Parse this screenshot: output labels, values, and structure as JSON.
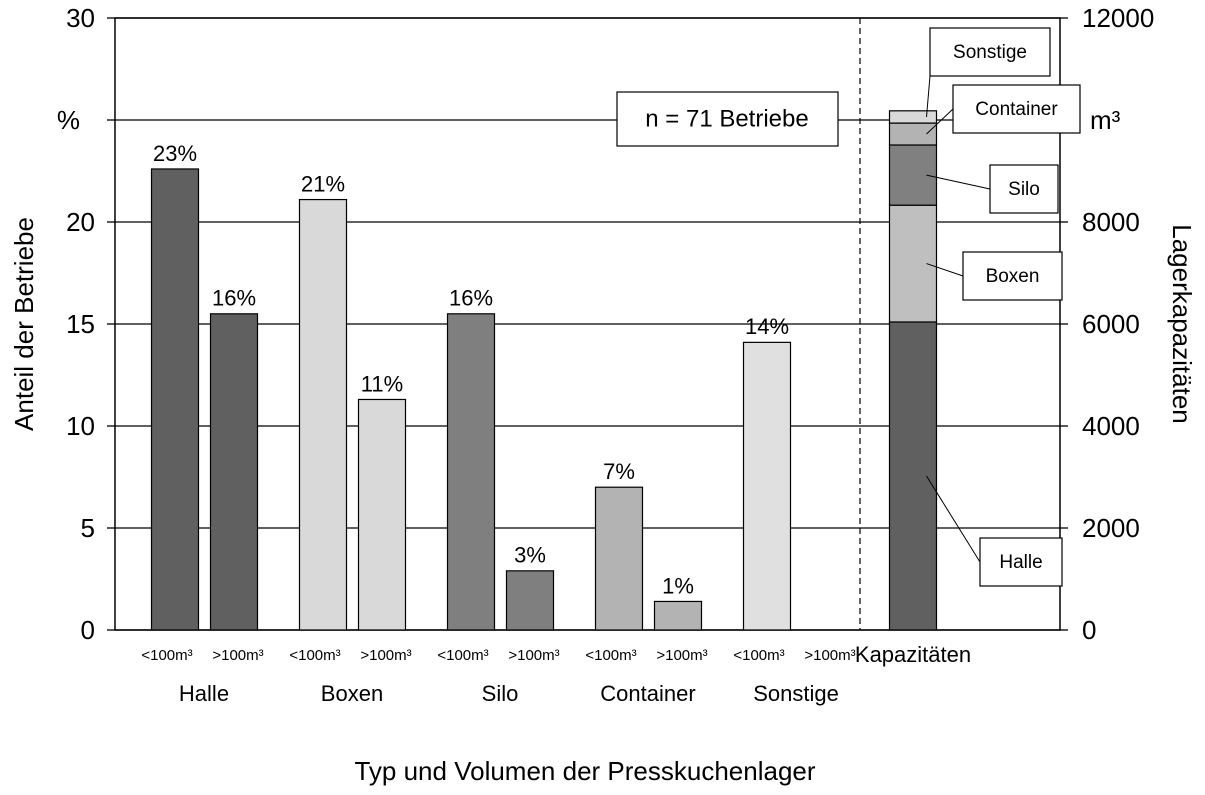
{
  "chart_data": {
    "type": "bar",
    "xlabel": "Typ und Volumen der Presskuchenlager",
    "ylabel": "Anteil der Betriebe",
    "y2label": "Lagerkapazitäten",
    "annotation": "n = 71 Betriebe",
    "categories": [
      "<100m³",
      ">100m³",
      "<100m³",
      ">100m³",
      "<100m³",
      ">100m³",
      "<100m³",
      ">100m³",
      "<100m³",
      ">100m³"
    ],
    "groups": [
      "Halle",
      "Boxen",
      "Silo",
      "Container",
      "Sonstige"
    ],
    "values": [
      22.6,
      15.5,
      21.1,
      11.3,
      15.5,
      2.9,
      7,
      1.4,
      14.1,
      null
    ],
    "value_labels": [
      "23%",
      "16%",
      "21%",
      "11%",
      "16%",
      "3%",
      "7%",
      "1%",
      "14%",
      null
    ],
    "colors": [
      "#606060",
      "#606060",
      "#d9d9d9",
      "#d9d9d9",
      "#7f7f7f",
      "#7f7f7f",
      "#b3b3b3",
      "#b3b3b3",
      "#e0e0e0",
      "#e0e0e0"
    ],
    "ylim": [
      0,
      30
    ],
    "yticks": [
      0,
      5,
      10,
      15,
      20,
      {
        "value": 25,
        "label": "%"
      },
      30
    ],
    "y2lim": [
      0,
      12000
    ],
    "y2ticks": [
      0,
      2000,
      4000,
      6000,
      8000,
      {
        "value": 10000,
        "label": "m³"
      },
      12000
    ],
    "grid": true,
    "capacity": {
      "category": "Kapazitäten",
      "series": [
        {
          "name": "Halle",
          "color": "#606060",
          "values": [
            6040
          ],
          "axis": "y2"
        },
        {
          "name": "Boxen",
          "color": "#bfbfbf",
          "values": [
            2290
          ],
          "axis": "y2"
        },
        {
          "name": "Silo",
          "color": "#808080",
          "values": [
            1180
          ],
          "axis": "y2"
        },
        {
          "name": "Container",
          "color": "#b3b3b3",
          "values": [
            430
          ],
          "axis": "y2"
        },
        {
          "name": "Sonstige",
          "color": "#d9d9d9",
          "values": [
            240
          ],
          "axis": "y2"
        }
      ]
    }
  }
}
